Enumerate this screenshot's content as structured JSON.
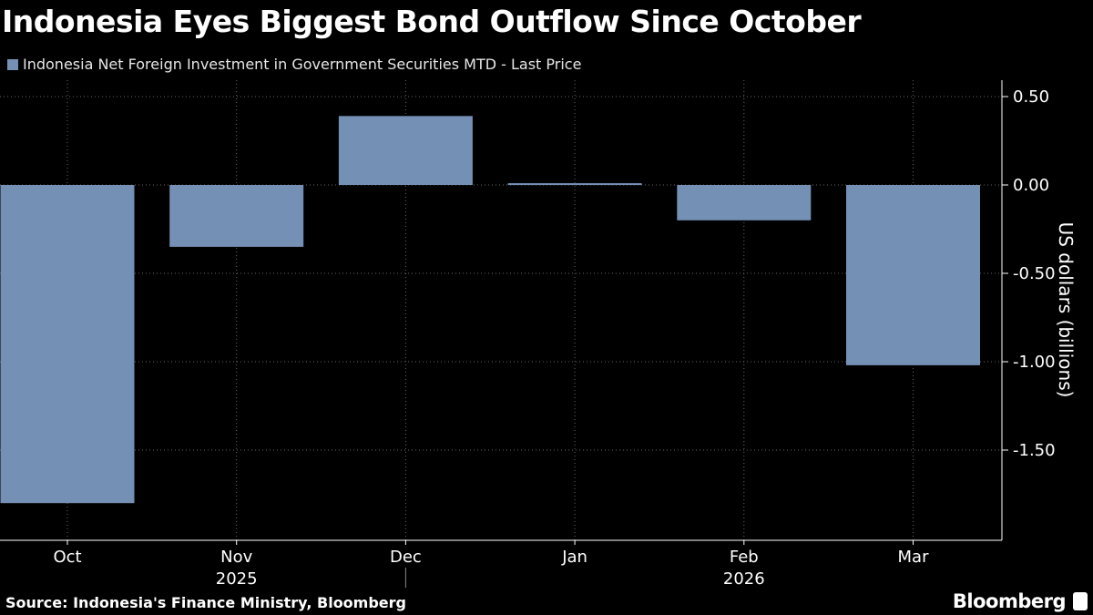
{
  "chart_data": {
    "type": "bar",
    "title": "Indonesia Eyes Biggest Bond Outflow Since October",
    "legend": [
      "Indonesia Net Foreign Investment in Government Securities MTD - Last Price"
    ],
    "series": [
      {
        "name": "Indonesia Net Foreign Investment in Government Securities MTD - Last Price",
        "values": [
          -1.8,
          -0.35,
          0.39,
          0.01,
          -0.2,
          -1.02
        ]
      }
    ],
    "categories": [
      "Oct",
      "Nov",
      "Dec",
      "Jan",
      "Feb",
      "Mar"
    ],
    "year_labels": [
      {
        "label": "2025",
        "at": "Nov"
      },
      {
        "label": "2026",
        "at": "Feb"
      }
    ],
    "ylabel": "US dollars (billions)",
    "yticks": [
      "0.50",
      "0.00",
      "-0.50",
      "-1.00",
      "-1.50"
    ],
    "ylim": [
      -2.0,
      0.6
    ],
    "y_axis_side": "right",
    "grid": true,
    "legend_placement": "top-left",
    "bar_color": "#7590b5",
    "source": "Source: Indonesia's Finance Ministry, Bloomberg",
    "brand": "Bloomberg"
  }
}
